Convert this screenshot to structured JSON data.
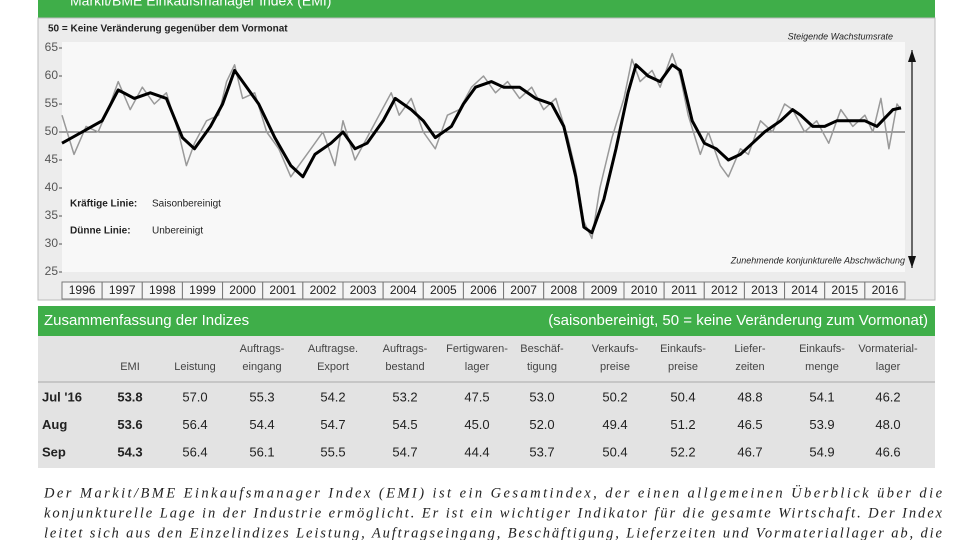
{
  "header": {
    "title": "Markit/BME Einkaufsmanager Index (EMI)"
  },
  "chart": {
    "type": "line",
    "annotations": [
      "50 = Keine Veränderung gegenüber dem Vormonat",
      "Steigende Wachstumsrate",
      "Zunehmende konjunkturelle Abschwächung"
    ],
    "legend_notes": [
      [
        "Kräftige Linie:",
        "Saisonbereinigt"
      ],
      [
        "Dünne Linie:",
        "Unbereinigt"
      ]
    ],
    "xlim": [
      1996,
      2017
    ],
    "ylim": [
      25,
      65
    ],
    "xticks": [
      1996,
      1997,
      1998,
      1999,
      2000,
      2001,
      2002,
      2003,
      2004,
      2005,
      2006,
      2007,
      2008,
      2009,
      2010,
      2011,
      2012,
      2013,
      2014,
      2015,
      2016
    ],
    "yticks": [
      25,
      30,
      35,
      40,
      45,
      50,
      55,
      60,
      65
    ],
    "reference_line": 50,
    "series": [
      {
        "color": "#999999",
        "width": 1.5,
        "x": [
          1996.0,
          1996.3,
          1996.6,
          1996.9,
          1997.2,
          1997.4,
          1997.7,
          1998.0,
          1998.3,
          1998.6,
          1998.9,
          1999.1,
          1999.3,
          1999.6,
          1999.9,
          2000.1,
          2000.3,
          2000.5,
          2000.8,
          2001.1,
          2001.4,
          2001.7,
          2001.9,
          2002.2,
          2002.5,
          2002.8,
          2003.0,
          2003.3,
          2003.6,
          2003.9,
          2004.2,
          2004.4,
          2004.7,
          2005.0,
          2005.3,
          2005.6,
          2005.9,
          2006.2,
          2006.5,
          2006.8,
          2007.1,
          2007.4,
          2007.7,
          2008.0,
          2008.3,
          2008.6,
          2008.8,
          2009.0,
          2009.2,
          2009.4,
          2009.7,
          2010.0,
          2010.2,
          2010.4,
          2010.7,
          2010.9,
          2011.2,
          2011.4,
          2011.6,
          2011.9,
          2012.1,
          2012.4,
          2012.6,
          2012.9,
          2013.1,
          2013.4,
          2013.7,
          2014.0,
          2014.2,
          2014.5,
          2014.8,
          2015.1,
          2015.4,
          2015.7,
          2016.0,
          2016.2,
          2016.4,
          2016.6,
          2016.8,
          2016.9
        ],
        "values": [
          53,
          46,
          51,
          50,
          55,
          59,
          54,
          58,
          55,
          57,
          50,
          44,
          48,
          52,
          53,
          59,
          62,
          56,
          57,
          50,
          47,
          42,
          44,
          47,
          50,
          44,
          52,
          45,
          49,
          53,
          57,
          53,
          56,
          50,
          47,
          53,
          54,
          58,
          60,
          57,
          59,
          56,
          58,
          54,
          56,
          49,
          43,
          34,
          31,
          40,
          49,
          56,
          63,
          59,
          61,
          58,
          64,
          60,
          53,
          46,
          50,
          44,
          42,
          47,
          46,
          52,
          50,
          55,
          54,
          50,
          52,
          48,
          54,
          51,
          53,
          50,
          56,
          47,
          55,
          54
        ]
      },
      {
        "color": "#000000",
        "width": 3,
        "x": [
          1996.0,
          1996.5,
          1997.0,
          1997.4,
          1997.8,
          1998.2,
          1998.6,
          1999.0,
          1999.3,
          1999.7,
          2000.0,
          2000.3,
          2000.6,
          2000.9,
          2001.3,
          2001.7,
          2002.0,
          2002.3,
          2002.7,
          2003.0,
          2003.3,
          2003.6,
          2004.0,
          2004.3,
          2004.7,
          2005.0,
          2005.3,
          2005.7,
          2006.0,
          2006.3,
          2006.7,
          2007.0,
          2007.4,
          2007.8,
          2008.2,
          2008.5,
          2008.8,
          2009.0,
          2009.2,
          2009.5,
          2009.8,
          2010.1,
          2010.3,
          2010.6,
          2010.9,
          2011.2,
          2011.4,
          2011.7,
          2012.0,
          2012.3,
          2012.6,
          2012.9,
          2013.2,
          2013.5,
          2013.9,
          2014.2,
          2014.4,
          2014.7,
          2015.0,
          2015.3,
          2015.7,
          2016.0,
          2016.3,
          2016.7,
          2016.9
        ],
        "values": [
          48,
          50,
          52,
          57.5,
          56,
          57,
          56,
          49,
          47,
          51,
          55,
          61,
          58,
          55,
          49,
          44,
          42,
          46,
          48,
          50,
          47,
          48,
          52,
          56,
          54,
          52,
          49,
          51,
          55,
          58,
          59,
          58,
          58,
          56,
          55,
          51,
          42,
          33,
          32,
          38,
          47,
          57,
          62,
          60,
          59,
          62,
          61,
          52,
          48,
          47,
          45,
          46,
          48,
          50,
          52,
          54,
          53,
          51,
          51,
          52,
          52,
          52,
          51,
          54,
          54.3
        ]
      }
    ]
  },
  "table": {
    "title": "Zusammenfassung der Indizes",
    "subtitle": "(saisonbereinigt, 50 = keine Veränderung zum Vormonat)",
    "columns": [
      [
        "EMI"
      ],
      [
        "Leistung"
      ],
      [
        "Auftrags-",
        "eingang"
      ],
      [
        "Auftragse.",
        "Export"
      ],
      [
        "Auftrags-",
        "bestand"
      ],
      [
        "Fertigwaren-",
        "lager"
      ],
      [
        "Beschäf-",
        "tigung"
      ],
      [
        "Verkaufs-",
        "preise"
      ],
      [
        "Einkaufs-",
        "preise"
      ],
      [
        "Liefer-",
        "zeiten"
      ],
      [
        "Einkaufs-",
        "menge"
      ],
      [
        "Vormaterial-",
        "lager"
      ]
    ],
    "rows": [
      [
        "Jul '16",
        "53.8",
        "57.0",
        "55.3",
        "54.2",
        "53.2",
        "47.5",
        "53.0",
        "50.2",
        "50.4",
        "48.8",
        "54.1",
        "46.2"
      ],
      [
        "Aug",
        "53.6",
        "56.4",
        "54.4",
        "54.7",
        "54.5",
        "45.0",
        "52.0",
        "49.4",
        "51.2",
        "46.5",
        "53.9",
        "48.0"
      ],
      [
        "Sep",
        "54.3",
        "56.4",
        "56.1",
        "55.5",
        "54.7",
        "44.4",
        "53.7",
        "50.4",
        "52.2",
        "46.7",
        "54.9",
        "46.6"
      ]
    ]
  },
  "paragraph": [
    "Der Markit/BME Einkaufsmanager Index (EMI) ist ein Gesamtindex, der einen allgemeinen Überblick über die",
    "konjunkturelle Lage in der Industrie ermöglicht. Er ist ein wichtiger Indikator für die gesamte Wirtschaft. Der Index",
    "leitet sich aus den Einzelindizes Leistung, Auftragseingang, Beschäftigung, Lieferzeiten und Vormateriallager ab, die"
  ]
}
